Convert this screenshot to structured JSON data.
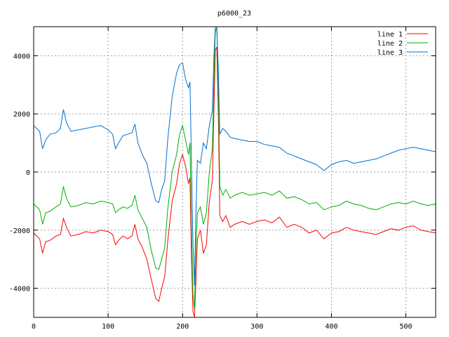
{
  "chart_data": {
    "type": "line",
    "title": "p6000_23",
    "xlabel": "",
    "ylabel": "",
    "xlim": [
      0,
      540
    ],
    "ylim": [
      -5000,
      5000
    ],
    "xticks": [
      0,
      100,
      200,
      300,
      400,
      500
    ],
    "yticks": [
      -4000,
      -2000,
      0,
      2000,
      4000
    ],
    "grid": true,
    "legend_position": "top-right",
    "series": [
      {
        "name": "line 1",
        "color": "#ff0000",
        "points": [
          [
            0,
            -2100
          ],
          [
            8,
            -2300
          ],
          [
            12,
            -2800
          ],
          [
            16,
            -2400
          ],
          [
            22,
            -2350
          ],
          [
            30,
            -2200
          ],
          [
            36,
            -2150
          ],
          [
            40,
            -1600
          ],
          [
            44,
            -1900
          ],
          [
            50,
            -2200
          ],
          [
            60,
            -2150
          ],
          [
            70,
            -2050
          ],
          [
            80,
            -2100
          ],
          [
            90,
            -2000
          ],
          [
            100,
            -2050
          ],
          [
            106,
            -2150
          ],
          [
            110,
            -2500
          ],
          [
            114,
            -2350
          ],
          [
            120,
            -2200
          ],
          [
            126,
            -2300
          ],
          [
            132,
            -2200
          ],
          [
            136,
            -1800
          ],
          [
            140,
            -2300
          ],
          [
            146,
            -2600
          ],
          [
            152,
            -3000
          ],
          [
            158,
            -3700
          ],
          [
            164,
            -4350
          ],
          [
            168,
            -4450
          ],
          [
            172,
            -4000
          ],
          [
            176,
            -3600
          ],
          [
            180,
            -2400
          ],
          [
            186,
            -1000
          ],
          [
            192,
            -400
          ],
          [
            196,
            300
          ],
          [
            200,
            600
          ],
          [
            204,
            200
          ],
          [
            208,
            -400
          ],
          [
            210,
            -200
          ],
          [
            212,
            -3000
          ],
          [
            214,
            -4800
          ],
          [
            216,
            -5000
          ],
          [
            218,
            -3700
          ],
          [
            220,
            -2300
          ],
          [
            224,
            -2000
          ],
          [
            228,
            -2800
          ],
          [
            232,
            -2500
          ],
          [
            236,
            -1000
          ],
          [
            240,
            -300
          ],
          [
            242,
            2000
          ],
          [
            244,
            4200
          ],
          [
            246,
            4300
          ],
          [
            248,
            2000
          ],
          [
            250,
            -1500
          ],
          [
            254,
            -1700
          ],
          [
            258,
            -1500
          ],
          [
            264,
            -1900
          ],
          [
            270,
            -1800
          ],
          [
            280,
            -1700
          ],
          [
            290,
            -1800
          ],
          [
            300,
            -1700
          ],
          [
            310,
            -1650
          ],
          [
            320,
            -1750
          ],
          [
            330,
            -1550
          ],
          [
            340,
            -1900
          ],
          [
            350,
            -1800
          ],
          [
            360,
            -1900
          ],
          [
            370,
            -2100
          ],
          [
            380,
            -2000
          ],
          [
            390,
            -2300
          ],
          [
            400,
            -2100
          ],
          [
            410,
            -2050
          ],
          [
            420,
            -1900
          ],
          [
            430,
            -2000
          ],
          [
            440,
            -2050
          ],
          [
            450,
            -2100
          ],
          [
            460,
            -2150
          ],
          [
            470,
            -2050
          ],
          [
            480,
            -1950
          ],
          [
            490,
            -2000
          ],
          [
            500,
            -1900
          ],
          [
            510,
            -1850
          ],
          [
            520,
            -2000
          ],
          [
            530,
            -2050
          ],
          [
            540,
            -2100
          ]
        ]
      },
      {
        "name": "line 2",
        "color": "#00b000",
        "points": [
          [
            0,
            -1100
          ],
          [
            8,
            -1300
          ],
          [
            12,
            -1800
          ],
          [
            16,
            -1400
          ],
          [
            22,
            -1350
          ],
          [
            30,
            -1200
          ],
          [
            36,
            -1100
          ],
          [
            40,
            -500
          ],
          [
            44,
            -900
          ],
          [
            50,
            -1200
          ],
          [
            60,
            -1150
          ],
          [
            70,
            -1050
          ],
          [
            80,
            -1100
          ],
          [
            90,
            -1000
          ],
          [
            100,
            -1050
          ],
          [
            106,
            -1100
          ],
          [
            110,
            -1400
          ],
          [
            114,
            -1300
          ],
          [
            120,
            -1200
          ],
          [
            126,
            -1250
          ],
          [
            132,
            -1150
          ],
          [
            136,
            -800
          ],
          [
            140,
            -1300
          ],
          [
            146,
            -1600
          ],
          [
            152,
            -1900
          ],
          [
            158,
            -2700
          ],
          [
            164,
            -3300
          ],
          [
            168,
            -3350
          ],
          [
            172,
            -3000
          ],
          [
            176,
            -2600
          ],
          [
            180,
            -1300
          ],
          [
            186,
            0
          ],
          [
            192,
            600
          ],
          [
            196,
            1300
          ],
          [
            200,
            1600
          ],
          [
            204,
            1100
          ],
          [
            208,
            600
          ],
          [
            210,
            1000
          ],
          [
            212,
            -2000
          ],
          [
            214,
            -4200
          ],
          [
            216,
            -4700
          ],
          [
            218,
            -2600
          ],
          [
            220,
            -1400
          ],
          [
            224,
            -1200
          ],
          [
            228,
            -1800
          ],
          [
            232,
            -1400
          ],
          [
            236,
            0
          ],
          [
            240,
            800
          ],
          [
            242,
            3000
          ],
          [
            244,
            4800
          ],
          [
            246,
            5000
          ],
          [
            248,
            3000
          ],
          [
            250,
            -500
          ],
          [
            254,
            -800
          ],
          [
            258,
            -600
          ],
          [
            264,
            -900
          ],
          [
            270,
            -800
          ],
          [
            280,
            -700
          ],
          [
            290,
            -800
          ],
          [
            300,
            -750
          ],
          [
            310,
            -700
          ],
          [
            320,
            -800
          ],
          [
            330,
            -650
          ],
          [
            340,
            -900
          ],
          [
            350,
            -850
          ],
          [
            360,
            -950
          ],
          [
            370,
            -1100
          ],
          [
            380,
            -1050
          ],
          [
            390,
            -1300
          ],
          [
            400,
            -1200
          ],
          [
            410,
            -1150
          ],
          [
            420,
            -1000
          ],
          [
            430,
            -1100
          ],
          [
            440,
            -1150
          ],
          [
            450,
            -1250
          ],
          [
            460,
            -1300
          ],
          [
            470,
            -1200
          ],
          [
            480,
            -1100
          ],
          [
            490,
            -1050
          ],
          [
            500,
            -1100
          ],
          [
            510,
            -1000
          ],
          [
            520,
            -1100
          ],
          [
            530,
            -1150
          ],
          [
            540,
            -1100
          ]
        ]
      },
      {
        "name": "line 3",
        "color": "#0070d0",
        "points": [
          [
            0,
            1600
          ],
          [
            8,
            1400
          ],
          [
            12,
            800
          ],
          [
            16,
            1100
          ],
          [
            22,
            1300
          ],
          [
            30,
            1350
          ],
          [
            36,
            1500
          ],
          [
            40,
            2150
          ],
          [
            44,
            1700
          ],
          [
            50,
            1400
          ],
          [
            60,
            1450
          ],
          [
            70,
            1500
          ],
          [
            80,
            1550
          ],
          [
            90,
            1600
          ],
          [
            100,
            1450
          ],
          [
            106,
            1300
          ],
          [
            110,
            800
          ],
          [
            114,
            1000
          ],
          [
            120,
            1250
          ],
          [
            126,
            1300
          ],
          [
            132,
            1350
          ],
          [
            136,
            1650
          ],
          [
            140,
            1000
          ],
          [
            146,
            600
          ],
          [
            152,
            300
          ],
          [
            158,
            -400
          ],
          [
            164,
            -1000
          ],
          [
            168,
            -1050
          ],
          [
            172,
            -600
          ],
          [
            176,
            -300
          ],
          [
            180,
            1100
          ],
          [
            186,
            2600
          ],
          [
            192,
            3400
          ],
          [
            196,
            3700
          ],
          [
            200,
            3750
          ],
          [
            204,
            3200
          ],
          [
            208,
            2900
          ],
          [
            210,
            3100
          ],
          [
            212,
            200
          ],
          [
            214,
            -2500
          ],
          [
            216,
            -3900
          ],
          [
            218,
            -1300
          ],
          [
            220,
            400
          ],
          [
            224,
            300
          ],
          [
            228,
            1000
          ],
          [
            232,
            800
          ],
          [
            236,
            1600
          ],
          [
            240,
            2100
          ],
          [
            242,
            3900
          ],
          [
            244,
            5000
          ],
          [
            246,
            5000
          ],
          [
            248,
            3500
          ],
          [
            250,
            1300
          ],
          [
            254,
            1500
          ],
          [
            258,
            1400
          ],
          [
            264,
            1200
          ],
          [
            270,
            1150
          ],
          [
            280,
            1100
          ],
          [
            290,
            1050
          ],
          [
            300,
            1050
          ],
          [
            310,
            950
          ],
          [
            320,
            900
          ],
          [
            330,
            850
          ],
          [
            340,
            650
          ],
          [
            350,
            550
          ],
          [
            360,
            450
          ],
          [
            370,
            350
          ],
          [
            380,
            250
          ],
          [
            390,
            50
          ],
          [
            400,
            250
          ],
          [
            410,
            350
          ],
          [
            420,
            400
          ],
          [
            430,
            300
          ],
          [
            440,
            350
          ],
          [
            450,
            400
          ],
          [
            460,
            450
          ],
          [
            470,
            550
          ],
          [
            480,
            650
          ],
          [
            490,
            750
          ],
          [
            500,
            800
          ],
          [
            510,
            850
          ],
          [
            520,
            800
          ],
          [
            530,
            750
          ],
          [
            540,
            700
          ]
        ]
      }
    ]
  }
}
